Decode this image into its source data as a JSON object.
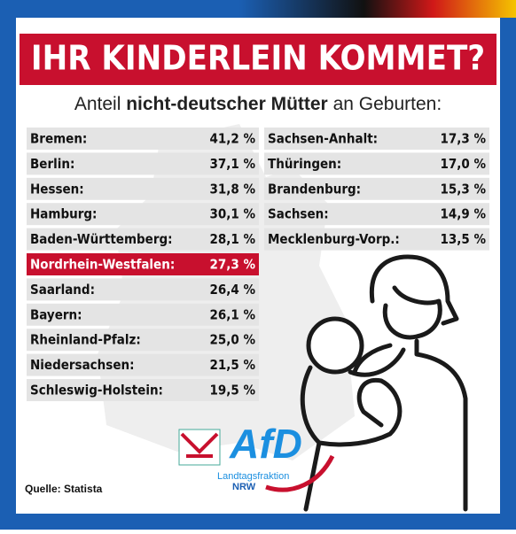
{
  "header": {
    "title": "IHR KINDERLEIN KOMMET?",
    "subtitle": [
      "Anteil ",
      "nicht-deutscher Mütter",
      " an Geburten:"
    ]
  },
  "table": {
    "left": [
      [
        "Bremen:",
        "41,2 %"
      ],
      [
        "Berlin:",
        "37,1 %"
      ],
      [
        "Hessen:",
        "31,8 %"
      ],
      [
        "Hamburg:",
        "30,1 %"
      ],
      [
        "Baden-Württemberg:",
        "28,1 %"
      ],
      [
        "Nordrhein-Westfalen:",
        "27,3 %"
      ],
      [
        "Saarland:",
        "26,4 %"
      ],
      [
        "Bayern:",
        "26,1 %"
      ],
      [
        "Rheinland-Pfalz:",
        "25,0 %"
      ],
      [
        "Niedersachsen:",
        "21,5 %"
      ],
      [
        "Schleswig-Holstein:",
        "19,5 %"
      ]
    ],
    "right": [
      [
        "Sachsen-Anhalt:",
        "17,3 %"
      ],
      [
        "Thüringen:",
        "17,0 %"
      ],
      [
        "Brandenburg:",
        "15,3 %"
      ],
      [
        "Sachsen:",
        "14,9 %"
      ],
      [
        "Mecklenburg-Vorp.:",
        "13,5 %"
      ]
    ]
  },
  "logo": {
    "name": "AfD",
    "line1": "Landtagsfraktion",
    "line2": "NRW"
  },
  "source": "Quelle: Statista"
}
